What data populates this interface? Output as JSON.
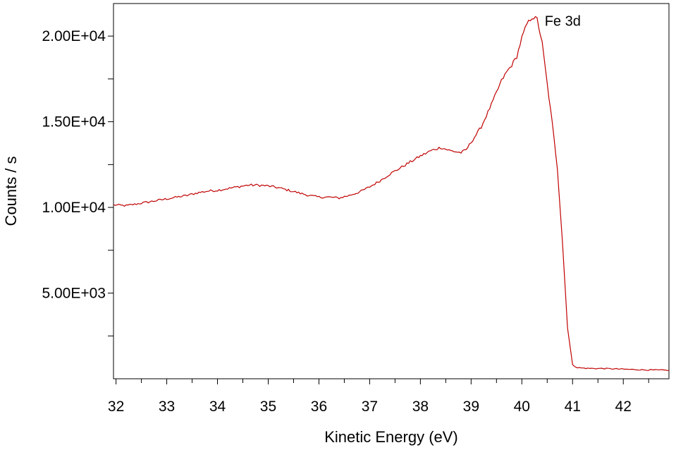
{
  "chart_data": {
    "type": "line",
    "title": "",
    "xlabel": "Kinetic Energy (eV)",
    "ylabel": "Counts / s",
    "xlim": [
      31.95,
      42.9
    ],
    "ylim": [
      0,
      21900
    ],
    "x_ticks": [
      32,
      33,
      34,
      35,
      36,
      37,
      38,
      39,
      40,
      41,
      42
    ],
    "x_tick_labels": [
      "32",
      "33",
      "34",
      "35",
      "36",
      "37",
      "38",
      "39",
      "40",
      "41",
      "42"
    ],
    "x_minor_step": 0.5,
    "y_ticks": [
      5000,
      10000,
      15000,
      20000
    ],
    "y_tick_labels": [
      "5.00E+03",
      "1.00E+04",
      "1.50E+04",
      "2.00E+04"
    ],
    "y_minor_step": 2500,
    "grid": false,
    "legend": "none",
    "annotations": [
      {
        "text": "Fe 3d",
        "x": 40.45,
        "y": 20900
      }
    ],
    "series": [
      {
        "color": "#c00000",
        "x": [
          31.95,
          32.2,
          32.4,
          32.6,
          32.8,
          33.0,
          33.2,
          33.4,
          33.6,
          33.8,
          34.0,
          34.2,
          34.4,
          34.6,
          34.8,
          35.0,
          35.2,
          35.4,
          35.6,
          35.8,
          36.0,
          36.2,
          36.4,
          36.6,
          36.8,
          37.0,
          37.2,
          37.4,
          37.6,
          37.8,
          38.0,
          38.2,
          38.4,
          38.6,
          38.8,
          38.9,
          39.0,
          39.2,
          39.4,
          39.6,
          39.7,
          39.8,
          39.9,
          40.0,
          40.1,
          40.2,
          40.3,
          40.4,
          40.5,
          40.6,
          40.7,
          40.8,
          40.9,
          41.0,
          41.1,
          41.2,
          41.4,
          41.6,
          41.8,
          42.0,
          42.2,
          42.4,
          42.6,
          42.9
        ],
        "values": [
          10150,
          10100,
          10200,
          10300,
          10400,
          10500,
          10600,
          10700,
          10850,
          10950,
          11000,
          11100,
          11200,
          11300,
          11300,
          11250,
          11150,
          11000,
          10850,
          10700,
          10600,
          10600,
          10550,
          10700,
          10900,
          11200,
          11550,
          11950,
          12300,
          12650,
          13000,
          13300,
          13500,
          13300,
          13200,
          13350,
          13800,
          14700,
          16000,
          17400,
          17900,
          18300,
          18800,
          19900,
          20700,
          21100,
          21000,
          19600,
          17200,
          14900,
          12300,
          8000,
          3000,
          800,
          650,
          620,
          600,
          600,
          580,
          560,
          540,
          520,
          510,
          500
        ]
      }
    ]
  }
}
